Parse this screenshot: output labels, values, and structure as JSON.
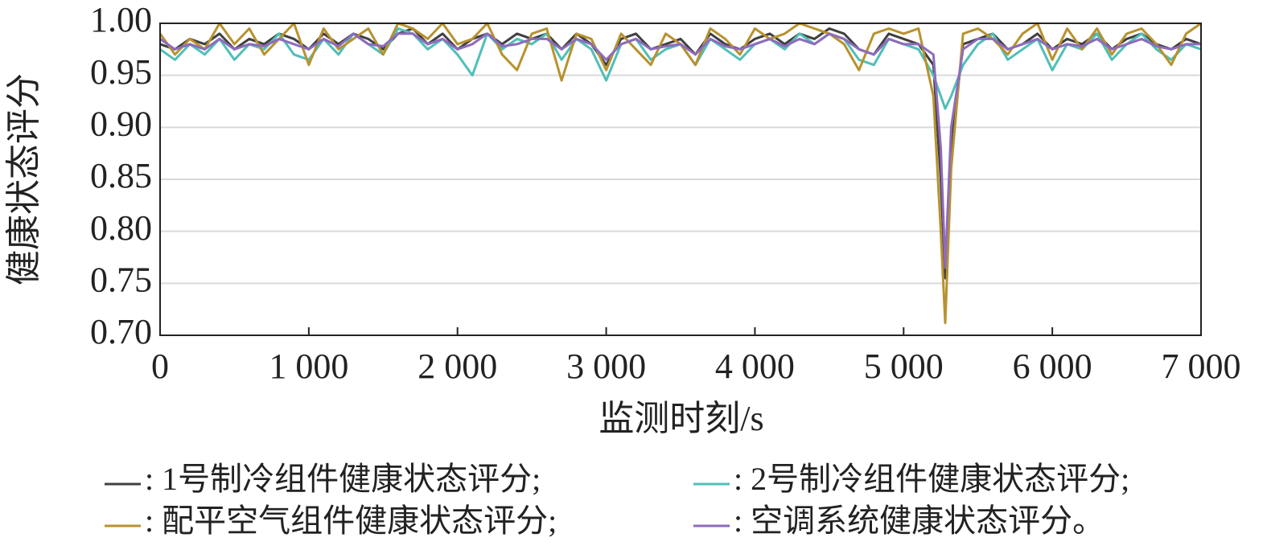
{
  "chart_data": {
    "type": "line",
    "y_label": "健康状态评分",
    "x_label": "监测时刻/s",
    "x": [
      0,
      100,
      200,
      300,
      400,
      500,
      600,
      700,
      800,
      900,
      1000,
      1100,
      1200,
      1300,
      1400,
      1500,
      1600,
      1700,
      1800,
      1900,
      2000,
      2100,
      2200,
      2300,
      2400,
      2500,
      2600,
      2700,
      2800,
      2900,
      3000,
      3100,
      3200,
      3300,
      3400,
      3500,
      3600,
      3700,
      3800,
      3900,
      4000,
      4100,
      4200,
      4300,
      4400,
      4500,
      4600,
      4700,
      4800,
      4900,
      5000,
      5100,
      5200,
      5250,
      5280,
      5320,
      5400,
      5500,
      5600,
      5700,
      5800,
      5900,
      6000,
      6100,
      6200,
      6300,
      6400,
      6500,
      6600,
      6700,
      6800,
      6900,
      7000
    ],
    "series": [
      {
        "name": ": 1号制冷组件健康状态评分;",
        "color": "#404040",
        "values": [
          0.98,
          0.975,
          0.985,
          0.98,
          0.99,
          0.975,
          0.985,
          0.98,
          0.99,
          0.985,
          0.975,
          0.99,
          0.98,
          0.99,
          0.985,
          0.975,
          0.99,
          0.995,
          0.98,
          0.99,
          0.975,
          0.985,
          0.99,
          0.98,
          0.99,
          0.985,
          0.99,
          0.975,
          0.99,
          0.98,
          0.96,
          0.985,
          0.99,
          0.975,
          0.98,
          0.985,
          0.97,
          0.99,
          0.98,
          0.975,
          0.985,
          0.99,
          0.98,
          0.99,
          0.985,
          0.995,
          0.99,
          0.975,
          0.97,
          0.99,
          0.985,
          0.98,
          0.96,
          0.85,
          0.755,
          0.88,
          0.98,
          0.985,
          0.99,
          0.975,
          0.98,
          0.99,
          0.975,
          0.985,
          0.98,
          0.99,
          0.975,
          0.985,
          0.99,
          0.98,
          0.975,
          0.985,
          0.98
        ]
      },
      {
        "name": ": 2号制冷组件健康状态评分;",
        "color": "#4fbfb8",
        "values": [
          0.975,
          0.965,
          0.98,
          0.97,
          0.985,
          0.965,
          0.98,
          0.975,
          0.99,
          0.97,
          0.965,
          0.985,
          0.97,
          0.99,
          0.98,
          0.97,
          0.995,
          0.99,
          0.975,
          0.985,
          0.97,
          0.95,
          0.99,
          0.975,
          0.985,
          0.98,
          0.99,
          0.965,
          0.985,
          0.975,
          0.945,
          0.98,
          0.985,
          0.965,
          0.975,
          0.98,
          0.96,
          0.985,
          0.975,
          0.965,
          0.98,
          0.985,
          0.975,
          0.99,
          0.98,
          0.99,
          0.985,
          0.965,
          0.96,
          0.985,
          0.98,
          0.975,
          0.95,
          0.93,
          0.918,
          0.93,
          0.96,
          0.98,
          0.99,
          0.965,
          0.975,
          0.985,
          0.955,
          0.98,
          0.975,
          0.99,
          0.965,
          0.98,
          0.99,
          0.975,
          0.965,
          0.98,
          0.975
        ]
      },
      {
        "name": ": 配平空气组件健康状态评分;",
        "color": "#b8922e",
        "values": [
          0.99,
          0.97,
          0.985,
          0.975,
          1.0,
          0.98,
          0.995,
          0.97,
          0.985,
          1.0,
          0.96,
          0.995,
          0.975,
          0.985,
          0.995,
          0.97,
          1.0,
          0.995,
          0.985,
          1.0,
          0.98,
          0.985,
          1.0,
          0.97,
          0.955,
          0.99,
          0.995,
          0.945,
          0.99,
          0.985,
          0.955,
          0.99,
          0.975,
          0.96,
          0.99,
          0.98,
          0.96,
          0.995,
          0.985,
          0.97,
          0.995,
          0.985,
          0.99,
          1.0,
          0.995,
          0.99,
          0.98,
          0.955,
          0.99,
          0.995,
          0.99,
          0.995,
          0.93,
          0.8,
          0.712,
          0.86,
          0.99,
          0.995,
          0.985,
          0.97,
          0.99,
          1.0,
          0.965,
          0.995,
          0.975,
          0.995,
          0.97,
          0.99,
          0.995,
          0.98,
          0.96,
          0.99,
          1.0
        ]
      },
      {
        "name": ": 空调系统健康状态评分。",
        "color": "#8e6bbd",
        "values": [
          0.985,
          0.975,
          0.98,
          0.975,
          0.985,
          0.975,
          0.98,
          0.978,
          0.985,
          0.98,
          0.975,
          0.985,
          0.978,
          0.99,
          0.98,
          0.978,
          0.99,
          0.99,
          0.98,
          0.985,
          0.975,
          0.98,
          0.99,
          0.978,
          0.98,
          0.985,
          0.985,
          0.975,
          0.985,
          0.98,
          0.965,
          0.98,
          0.985,
          0.975,
          0.978,
          0.98,
          0.97,
          0.985,
          0.978,
          0.975,
          0.98,
          0.985,
          0.978,
          0.985,
          0.98,
          0.99,
          0.985,
          0.975,
          0.97,
          0.985,
          0.98,
          0.98,
          0.97,
          0.88,
          0.765,
          0.9,
          0.975,
          0.985,
          0.985,
          0.975,
          0.98,
          0.985,
          0.975,
          0.98,
          0.978,
          0.985,
          0.975,
          0.98,
          0.985,
          0.978,
          0.975,
          0.98,
          0.98
        ]
      }
    ],
    "xlim": [
      0,
      7000
    ],
    "xticks": [
      0,
      {
        "value": 1000,
        "label": "1 000"
      },
      {
        "value": 2000,
        "label": "2 000"
      },
      {
        "value": 3000,
        "label": "3 000"
      },
      {
        "value": 4000,
        "label": "4 000"
      },
      {
        "value": 5000,
        "label": "5 000"
      },
      {
        "value": 6000,
        "label": "6 000"
      },
      {
        "value": 7000,
        "label": "7 000"
      }
    ],
    "ylim": [
      0.7,
      1.0
    ],
    "yticks": [
      {
        "value": 0.7,
        "label": "0.70"
      },
      {
        "value": 0.75,
        "label": "0.75"
      },
      {
        "value": 0.8,
        "label": "0.80"
      },
      {
        "value": 0.85,
        "label": "0.85"
      },
      {
        "value": 0.9,
        "label": "0.90"
      },
      {
        "value": 0.95,
        "label": "0.95"
      },
      {
        "value": 1.0,
        "label": "1.00"
      }
    ],
    "grid": true,
    "legend": "bottom"
  }
}
